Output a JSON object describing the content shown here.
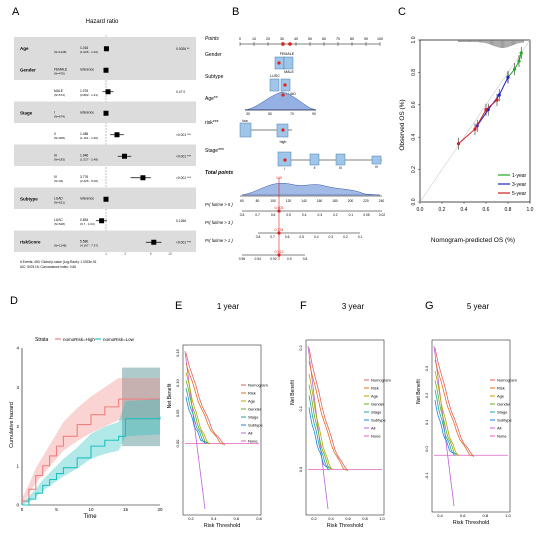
{
  "panel_letters": {
    "a": "A",
    "b": "B",
    "c": "C",
    "d": "D",
    "e": "E",
    "f": "F",
    "g": "G"
  },
  "forest": {
    "title": "Hazard ratio",
    "rows": [
      {
        "var": "Age",
        "sub": "",
        "n": "(N=1148)",
        "est": "1.016",
        "ci": "(1.006 - 1.02)",
        "p": "0.0026 **",
        "hr": 1.016,
        "lo": 1.006,
        "hi": 1.02,
        "shade": true
      },
      {
        "var": "Gender",
        "sub": "FEMALE",
        "n": "(N=475)",
        "est": "reference",
        "ci": "",
        "p": "",
        "hr": 1,
        "lo": 1,
        "hi": 1,
        "shade": true
      },
      {
        "var": "",
        "sub": "MALE",
        "n": "(N=674)",
        "est": "1.076",
        "ci": "(0.882 - 1.31)",
        "p": "0.47 0",
        "hr": 1.076,
        "lo": 0.882,
        "hi": 1.31,
        "shade": false
      },
      {
        "var": "Stage",
        "sub": "I",
        "n": "(N=674)",
        "est": "reference",
        "ci": "",
        "p": "",
        "hr": 1,
        "lo": 1,
        "hi": 1,
        "shade": true
      },
      {
        "var": "",
        "sub": "II",
        "n": "(N=308)",
        "est": "1.486",
        "ci": "(1.161 - 1.90)",
        "p": "<0.001 ***",
        "hr": 1.486,
        "lo": 1.161,
        "hi": 1.9,
        "shade": false
      },
      {
        "var": "",
        "sub": "III",
        "n": "(N=183)",
        "est": "1.946",
        "ci": "(1.527 - 2.48)",
        "p": "<0.001 ***",
        "hr": 1.946,
        "lo": 1.527,
        "hi": 2.48,
        "shade": true
      },
      {
        "var": "",
        "sub": "IV",
        "n": "(N=34)",
        "est": "3.776",
        "ci": "(2.425 - 5.00)",
        "p": "<0.001 ***",
        "hr": 3.776,
        "lo": 2.425,
        "hi": 5.0,
        "shade": false
      },
      {
        "var": "Subtype",
        "sub": "LUAD",
        "n": "(N=521)",
        "est": "reference",
        "ci": "",
        "p": "",
        "hr": 1,
        "lo": 1,
        "hi": 1,
        "shade": true
      },
      {
        "var": "",
        "sub": "LUSC",
        "n": "(N=628)",
        "est": "0.854",
        "ci": "(0.7 - 1.04)",
        "p": "0.1266",
        "hr": 0.854,
        "lo": 0.7,
        "hi": 1.04,
        "shade": false
      },
      {
        "var": "riskScore",
        "sub": "",
        "n": "(N=1148)",
        "est": "5.580",
        "ci": "(4.197 - 7.37)",
        "p": "<0.001 ***",
        "hr": 5.58,
        "lo": 4.197,
        "hi": 7.37,
        "shade": true
      }
    ],
    "axis_ticks": [
      "1",
      "2",
      "5",
      "10"
    ],
    "footer1": "# Events: 450; Global p-value (Log-Rank): 1.0023e-51",
    "footer2": "AIC: 5475.16; Concordance Index: 0.66"
  },
  "nomogram": {
    "labels": [
      "Points",
      "Gender",
      "Subtype",
      "Age**",
      "risk***",
      "Stage***",
      "Total points",
      "Pr( futime > 5 )",
      "Pr( futime > 3 )",
      "Pr( futime > 1 )"
    ],
    "points_ticks": [
      "0",
      "10",
      "20",
      "30",
      "40",
      "50",
      "60",
      "70",
      "80",
      "90",
      "100"
    ],
    "total_ticks": [
      "60",
      "80",
      "100",
      "120",
      "140",
      "160",
      "180",
      "200",
      "220",
      "240"
    ],
    "gender_labels": [
      "FEMALE",
      "MALE"
    ],
    "subtype_labels": [
      "LUSC",
      "LUAD"
    ],
    "age_ticks": [
      "30",
      "50",
      "70",
      "90"
    ],
    "risk_labels": [
      "low",
      "high"
    ],
    "stage_labels": [
      "I",
      "II",
      "III",
      "IV"
    ],
    "p5_ticks": [
      "0.8",
      "0.7",
      "0.6",
      "0.5",
      "0.4",
      "0.3",
      "0.2",
      "0.1",
      "0.05",
      "0.02"
    ],
    "p3_ticks": [
      "0.8",
      "0.7",
      "0.6",
      "0.5",
      "0.4",
      "0.3",
      "0.2",
      "0.1"
    ],
    "p1_ticks": [
      "0.96",
      "0.94",
      "0.92",
      "0.9",
      "0.8"
    ],
    "total_red": "149",
    "p5_red": "0.605",
    "p3_red": "0.734",
    "p1_red": "0.912"
  },
  "calibration": {
    "xlabel": "Nomogram-predicted OS (%)",
    "ylabel": "Observed OS (%)",
    "x_ticks": [
      "0.0",
      "0.2",
      "0.4",
      "0.6",
      "0.8",
      "1.0"
    ],
    "y_ticks": [
      "0.0",
      "0.2",
      "0.4",
      "0.6",
      "0.8",
      "1.0"
    ],
    "legend": [
      "1-year",
      "3-year",
      "5-year"
    ],
    "colors": [
      "#22aa22",
      "#2222cc",
      "#cc2222"
    ]
  },
  "cumhaz": {
    "legend_title": "Strata",
    "legend": [
      "nomoRisk=High",
      "nomoRisk=Low"
    ],
    "colors": [
      "#f08080",
      "#20c0c0"
    ],
    "xlabel": "Time",
    "ylabel": "Cumulative hazard",
    "x_ticks": [
      "0",
      "5",
      "10",
      "15",
      "20"
    ],
    "y_ticks": [
      "0",
      "1",
      "2",
      "3",
      "4"
    ]
  },
  "dca": [
    {
      "title": "1 year",
      "xlabel": "Risk Threshold",
      "ylabel": "Net Benefit",
      "x_ticks": [
        "0.2",
        "0.4",
        "0.6",
        "0.8"
      ],
      "y_ticks": [
        "0.00",
        "0.05",
        "0.10",
        "0.15"
      ]
    },
    {
      "title": "3 year",
      "xlabel": "Risk Threshold",
      "ylabel": "Net Benefit",
      "x_ticks": [
        "0.2",
        "0.4",
        "0.6",
        "0.8",
        "1.0"
      ],
      "y_ticks": [
        "0.0",
        "0.1",
        "0.2"
      ]
    },
    {
      "title": "5 year",
      "xlabel": "Risk Threshold",
      "ylabel": "Net Benefit",
      "x_ticks": [
        "0.4",
        "0.6",
        "0.8",
        "1.0"
      ],
      "y_ticks": [
        "-0.1",
        "0.0",
        "0.1",
        "0.2",
        "0.3"
      ]
    }
  ],
  "dca_legend": [
    "Nomogram",
    "Risk",
    "Age",
    "Gender",
    "Stage",
    "Subtype",
    "All",
    "None"
  ],
  "dca_colors": [
    "#e06060",
    "#e07020",
    "#c0a000",
    "#60b020",
    "#20a0a0",
    "#2080e0",
    "#c060e0",
    "#e060c0"
  ],
  "chart_data": [
    {
      "type": "forest",
      "title": "Hazard ratio",
      "categories": [
        "Age",
        "Gender MALE",
        "Stage II",
        "Stage III",
        "Stage IV",
        "Subtype LUSC",
        "riskScore"
      ],
      "values": [
        1.016,
        1.076,
        1.486,
        1.946,
        3.776,
        0.854,
        5.58
      ]
    },
    {
      "type": "line",
      "xlabel": "Nomogram-predicted OS (%)",
      "ylabel": "Observed OS (%)",
      "series": [
        {
          "name": "1-year",
          "x": [
            0.8,
            0.86,
            0.9,
            0.92
          ],
          "y": [
            0.77,
            0.82,
            0.87,
            0.92
          ]
        },
        {
          "name": "3-year",
          "x": [
            0.52,
            0.62,
            0.72,
            0.8
          ],
          "y": [
            0.47,
            0.57,
            0.66,
            0.77
          ]
        },
        {
          "name": "5-year",
          "x": [
            0.35,
            0.5,
            0.6,
            0.7
          ],
          "y": [
            0.36,
            0.45,
            0.57,
            0.63
          ]
        }
      ]
    },
    {
      "type": "line",
      "xlabel": "Time",
      "ylabel": "Cumulative hazard",
      "series": [
        {
          "name": "nomoRisk=High",
          "x": [
            0,
            1,
            2,
            3,
            4,
            5,
            6,
            8,
            10,
            12,
            14,
            15,
            20
          ],
          "y": [
            0.1,
            0.4,
            0.75,
            1.0,
            1.25,
            1.5,
            1.75,
            2.05,
            2.3,
            2.5,
            2.7,
            2.7,
            2.7
          ]
        },
        {
          "name": "nomoRisk=Low",
          "x": [
            0,
            1,
            2,
            3,
            4,
            5,
            6,
            8,
            10,
            12,
            14,
            15,
            20
          ],
          "y": [
            0,
            0.15,
            0.3,
            0.5,
            0.65,
            0.8,
            0.95,
            1.2,
            1.5,
            1.65,
            1.75,
            2.2,
            2.25
          ]
        }
      ]
    }
  ]
}
